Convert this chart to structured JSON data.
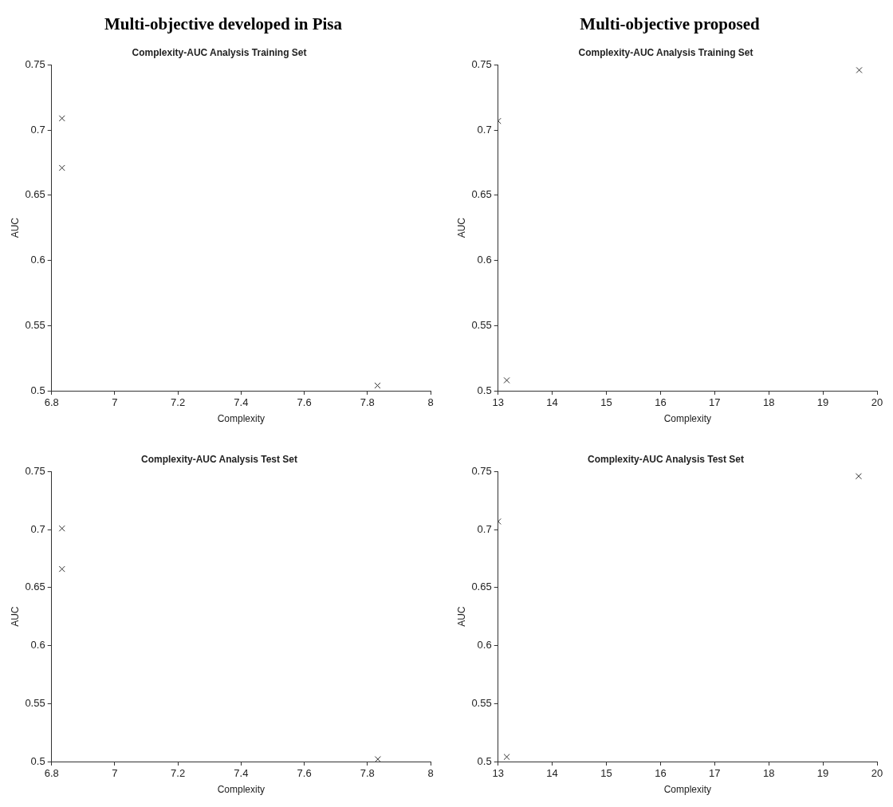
{
  "chart_data": [
    {
      "type": "scatter",
      "annotations": [
        "Multi-objective developed in Pisa"
      ],
      "title": "Complexity-AUC Analysis Training Set",
      "xlabel": "Complexity",
      "ylabel": "AUC",
      "marker": "cross",
      "color": "#333333",
      "x": [
        6.833,
        6.833,
        7.832
      ],
      "values": [
        0.709,
        0.671,
        0.504
      ],
      "xlim": [
        6.8,
        8
      ],
      "xticks": [
        6.8,
        7,
        7.2,
        7.4,
        7.6,
        7.8,
        8
      ],
      "ylim": [
        0.5,
        0.75
      ],
      "yticks": [
        0.5,
        0.55,
        0.6,
        0.65,
        0.7,
        0.75
      ]
    },
    {
      "type": "scatter",
      "annotations": [
        "Multi-objective proposed"
      ],
      "title": "Complexity-AUC Analysis Training Set",
      "xlabel": "Complexity",
      "ylabel": "AUC",
      "marker": "cross",
      "color": "#333333",
      "x": [
        13,
        13.16,
        19.67
      ],
      "values": [
        0.707,
        0.508,
        0.746
      ],
      "xlim": [
        13,
        20
      ],
      "xticks": [
        13,
        14,
        15,
        16,
        17,
        18,
        19,
        20
      ],
      "ylim": [
        0.5,
        0.75
      ],
      "yticks": [
        0.5,
        0.55,
        0.6,
        0.65,
        0.7,
        0.75
      ]
    },
    {
      "type": "scatter",
      "title": "Complexity-AUC Analysis Test Set",
      "xlabel": "Complexity",
      "ylabel": "AUC",
      "marker": "cross",
      "color": "#333333",
      "x": [
        6.833,
        6.833,
        7.833
      ],
      "values": [
        0.701,
        0.666,
        0.502
      ],
      "xlim": [
        6.8,
        8
      ],
      "xticks": [
        6.8,
        7,
        7.2,
        7.4,
        7.6,
        7.8,
        8
      ],
      "ylim": [
        0.5,
        0.75
      ],
      "yticks": [
        0.5,
        0.55,
        0.6,
        0.65,
        0.7,
        0.75
      ]
    },
    {
      "type": "scatter",
      "title": "Complexity-AUC Analysis Test Set",
      "xlabel": "Complexity",
      "ylabel": "AUC",
      "marker": "cross",
      "color": "#333333",
      "x": [
        13,
        13.16,
        19.66
      ],
      "values": [
        0.707,
        0.504,
        0.746
      ],
      "xlim": [
        13,
        20
      ],
      "xticks": [
        13,
        14,
        15,
        16,
        17,
        18,
        19,
        20
      ],
      "ylim": [
        0.5,
        0.75
      ],
      "yticks": [
        0.5,
        0.55,
        0.6,
        0.65,
        0.7,
        0.75
      ]
    }
  ]
}
